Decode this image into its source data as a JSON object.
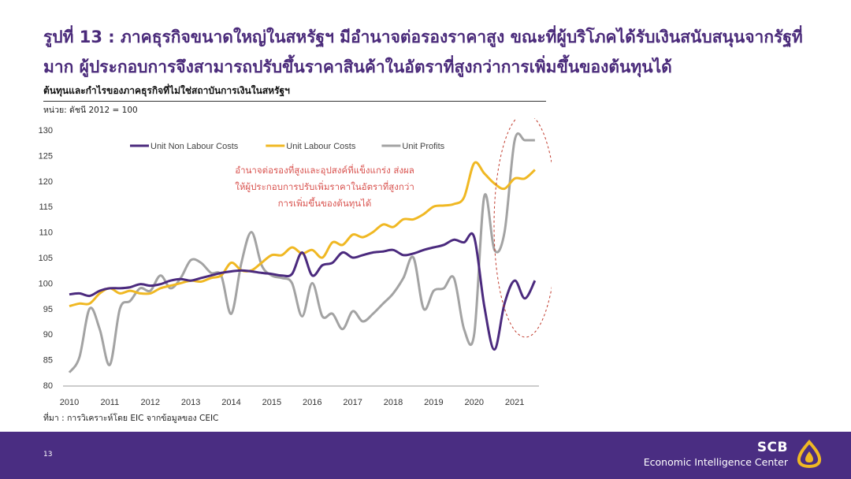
{
  "header": {
    "title": "รูปที่ 13 : ภาคธุรกิจขนาดใหญ่ในสหรัฐฯ มีอำนาจต่อรองราคาสูง ขณะที่ผู้บริโภคได้รับเงินสนับสนุนจากรัฐที่มาก ผู้ประกอบการจึงสามารถปรับขึ้นราคาสินค้าในอัตราที่สูงกว่าการเพิ่มขึ้นของต้นทุนได้",
    "subtitle": "ต้นทุนและกำไรของภาคธุรกิจที่ไม่ใช่สถาบันการเงินในสหรัฐฯ",
    "unit": "หน่วย: ดัชนี 2012 = 100"
  },
  "source": "ที่มา : การวิเคราะห์โดย EIC จากข้อมูลของ CEIC",
  "footer": {
    "page": "13",
    "brand": "SCB",
    "brand_sub": "Economic Intelligence Center",
    "color": "#4a2d82"
  },
  "chart_data": {
    "type": "line",
    "ylim": [
      80,
      130
    ],
    "yticks": [
      80,
      85,
      90,
      95,
      100,
      105,
      110,
      115,
      120,
      125,
      130
    ],
    "xlim": [
      2010,
      2021.6
    ],
    "xticks": [
      "2010",
      "2011",
      "2012",
      "2013",
      "2014",
      "2015",
      "2016",
      "2017",
      "2018",
      "2019",
      "2020",
      "2021"
    ],
    "legend_position": "top",
    "annotation": {
      "lines": [
        "อำนาจต่อรองที่สูงและอุปสงค์ที่แข็งแกร่ง ส่งผล",
        "ให้ผู้ประกอบการปรับเพิ่มราคาในอัตราที่สูงกว่า",
        "การเพิ่มขึ้นของต้นทุนได้"
      ],
      "color": "#d9534f"
    },
    "series": [
      {
        "name": "Unit Non Labour Costs",
        "color": "#4b2a7e",
        "x": [
          2010,
          2010.25,
          2010.5,
          2010.75,
          2011,
          2011.25,
          2011.5,
          2011.75,
          2012,
          2012.25,
          2012.5,
          2012.75,
          2013,
          2013.25,
          2013.5,
          2013.75,
          2014,
          2014.25,
          2014.5,
          2014.75,
          2015,
          2015.25,
          2015.5,
          2015.75,
          2016,
          2016.25,
          2016.5,
          2016.75,
          2017,
          2017.25,
          2017.5,
          2017.75,
          2018,
          2018.25,
          2018.5,
          2018.75,
          2019,
          2019.25,
          2019.5,
          2019.75,
          2020,
          2020.25,
          2020.5,
          2020.75,
          2021,
          2021.25,
          2021.5
        ],
        "values": [
          97.8,
          98,
          97.5,
          98.5,
          99,
          99,
          99.2,
          99.8,
          99.5,
          99.8,
          100.5,
          100.8,
          100.5,
          101,
          101.5,
          102,
          102.3,
          102.5,
          102.3,
          102,
          101.8,
          101.5,
          101.8,
          106,
          101.5,
          103.5,
          104,
          106,
          105,
          105.5,
          106,
          106.2,
          106.5,
          105.5,
          105.8,
          106.5,
          107,
          107.5,
          108.5,
          108,
          109,
          95.5,
          87,
          96,
          100.5,
          97,
          100.5
        ]
      },
      {
        "name": "Unit Labour Costs",
        "color": "#f0b823",
        "x": [
          2010,
          2010.25,
          2010.5,
          2010.75,
          2011,
          2011.25,
          2011.5,
          2011.75,
          2012,
          2012.25,
          2012.5,
          2012.75,
          2013,
          2013.25,
          2013.5,
          2013.75,
          2014,
          2014.25,
          2014.5,
          2014.75,
          2015,
          2015.25,
          2015.5,
          2015.75,
          2016,
          2016.25,
          2016.5,
          2016.75,
          2017,
          2017.25,
          2017.5,
          2017.75,
          2018,
          2018.25,
          2018.5,
          2018.75,
          2019,
          2019.25,
          2019.5,
          2019.75,
          2020,
          2020.25,
          2020.5,
          2020.75,
          2021,
          2021.25,
          2021.5
        ],
        "values": [
          95.5,
          96,
          96,
          98,
          99,
          98,
          98.5,
          98,
          98,
          99,
          99.5,
          100,
          100.5,
          100.3,
          101,
          101.5,
          104,
          102.5,
          102.5,
          104,
          105.5,
          105.5,
          107,
          105.8,
          106.5,
          105,
          108,
          107.5,
          109.5,
          109,
          110,
          111.5,
          111,
          112.5,
          112.5,
          113.5,
          115,
          115.2,
          115.5,
          116.8,
          123.5,
          121.5,
          119.5,
          118.5,
          120.5,
          120.5,
          122.2
        ]
      },
      {
        "name": "Unit Profits",
        "color": "#a3a3a3",
        "x": [
          2010,
          2010.25,
          2010.5,
          2010.75,
          2011,
          2011.25,
          2011.5,
          2011.75,
          2012,
          2012.25,
          2012.5,
          2012.75,
          2013,
          2013.25,
          2013.5,
          2013.75,
          2014,
          2014.25,
          2014.5,
          2014.75,
          2015,
          2015.25,
          2015.5,
          2015.75,
          2016,
          2016.25,
          2016.5,
          2016.75,
          2017,
          2017.25,
          2017.5,
          2017.75,
          2018,
          2018.25,
          2018.5,
          2018.75,
          2019,
          2019.25,
          2019.5,
          2019.75,
          2020,
          2020.25,
          2020.5,
          2020.75,
          2021,
          2021.25,
          2021.5
        ],
        "values": [
          82.5,
          85.5,
          95,
          91,
          84,
          95,
          96.5,
          99,
          98.5,
          101.5,
          99,
          101,
          104.5,
          104,
          102,
          101.5,
          94,
          104,
          110,
          103.5,
          101.5,
          101,
          100,
          93.5,
          100,
          93.5,
          94,
          91,
          94.5,
          92.5,
          94,
          96,
          98,
          101,
          105,
          95,
          98.5,
          99,
          101,
          91,
          90,
          117,
          106.5,
          110,
          128,
          128,
          128
        ]
      }
    ]
  }
}
